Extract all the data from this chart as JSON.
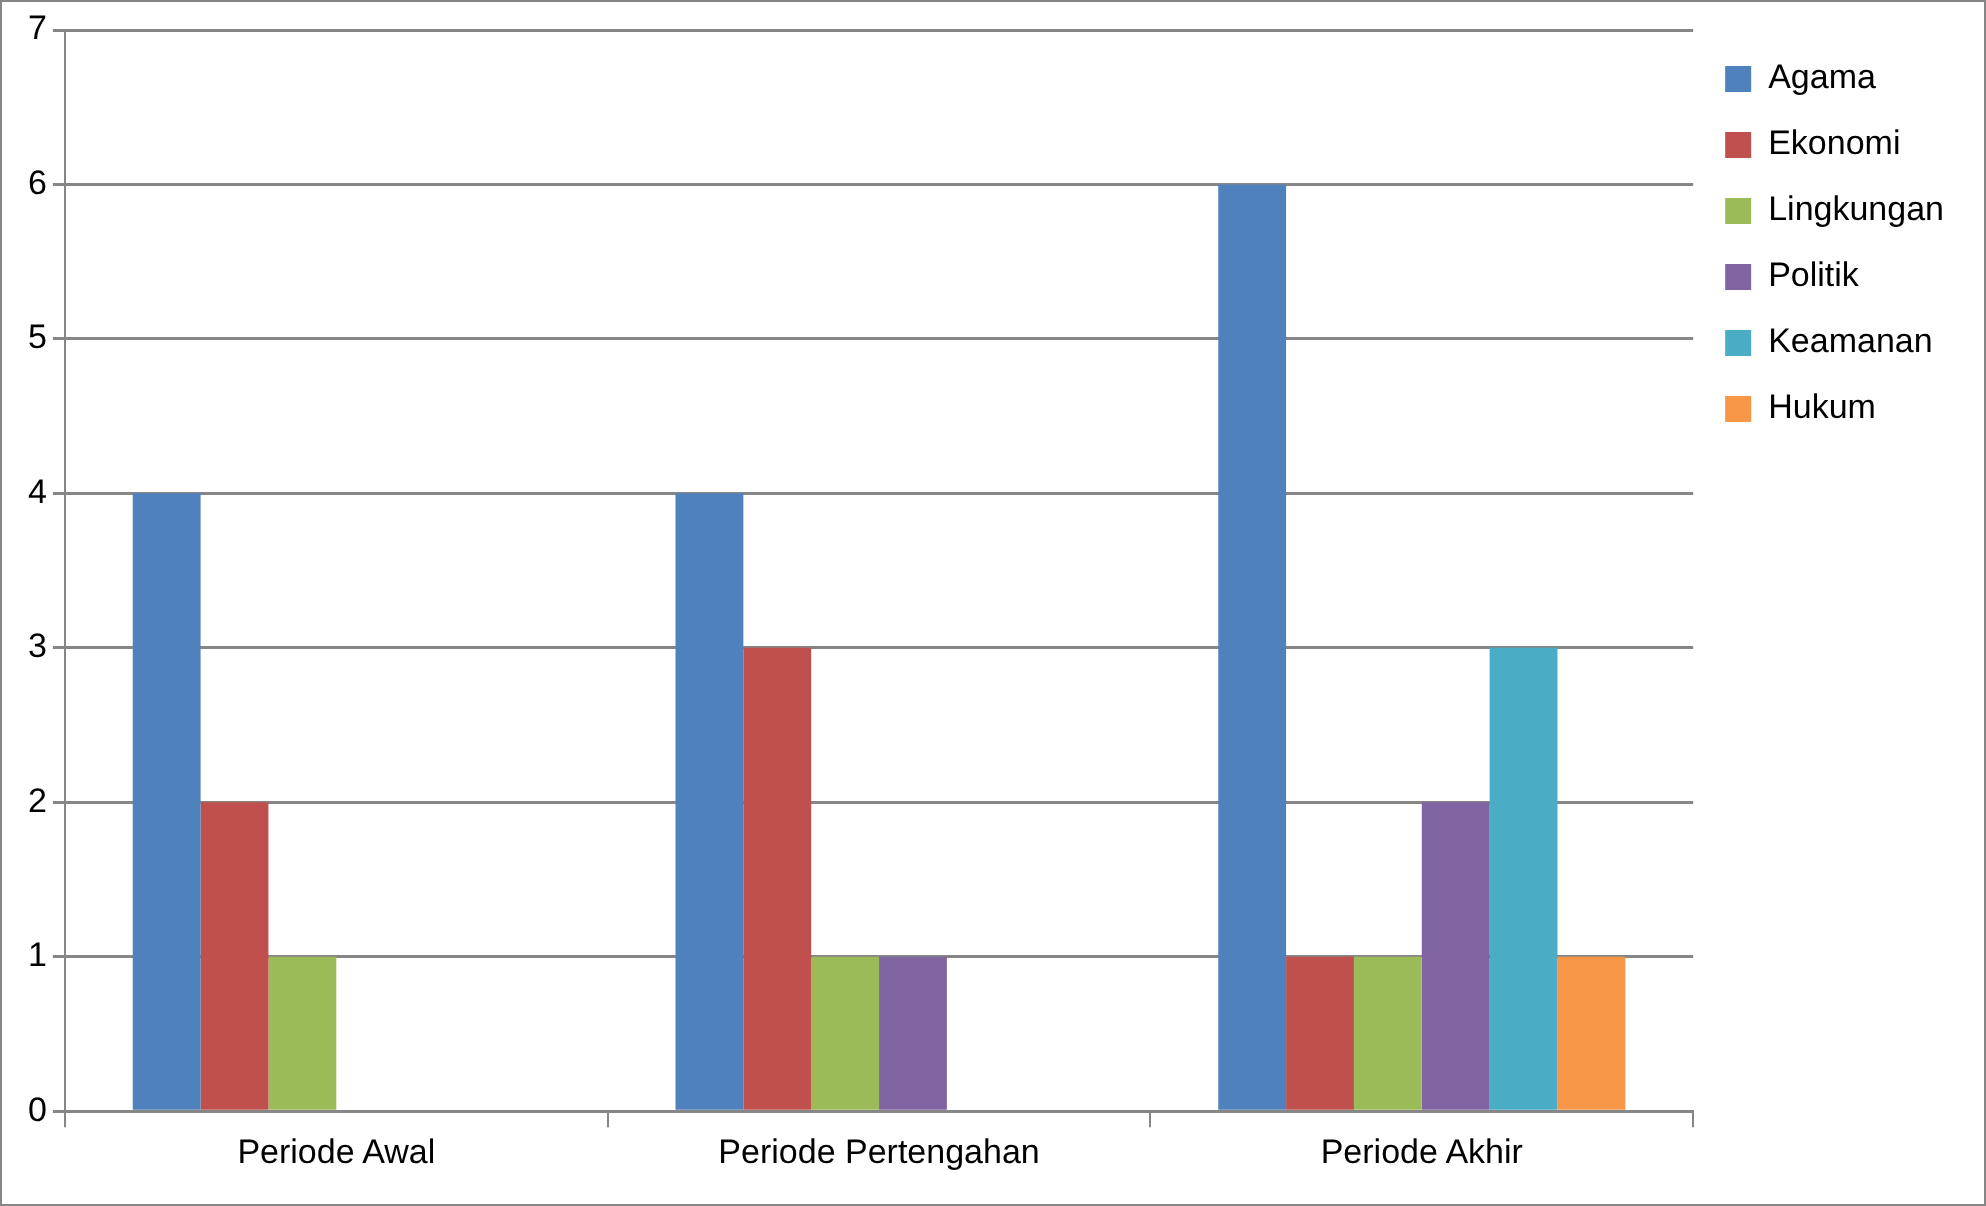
{
  "chart_data": {
    "type": "bar",
    "categories": [
      "Periode Awal",
      "Periode Pertengahan",
      "Periode Akhir"
    ],
    "series": [
      {
        "name": "Agama",
        "color": "#4f81bd",
        "values": [
          4,
          4,
          6
        ]
      },
      {
        "name": "Ekonomi",
        "color": "#c0504d",
        "values": [
          2,
          3,
          1
        ]
      },
      {
        "name": "Lingkungan",
        "color": "#9bbb59",
        "values": [
          1,
          1,
          1
        ]
      },
      {
        "name": "Politik",
        "color": "#8064a2",
        "values": [
          null,
          1,
          2
        ]
      },
      {
        "name": "Keamanan",
        "color": "#4bacc6",
        "values": [
          null,
          null,
          3
        ]
      },
      {
        "name": "Hukum",
        "color": "#f79646",
        "values": [
          null,
          null,
          1
        ]
      }
    ],
    "ylim": [
      0,
      7
    ],
    "yticks": [
      0,
      1,
      2,
      3,
      4,
      5,
      6,
      7
    ],
    "grid": "y",
    "legend": "right"
  }
}
